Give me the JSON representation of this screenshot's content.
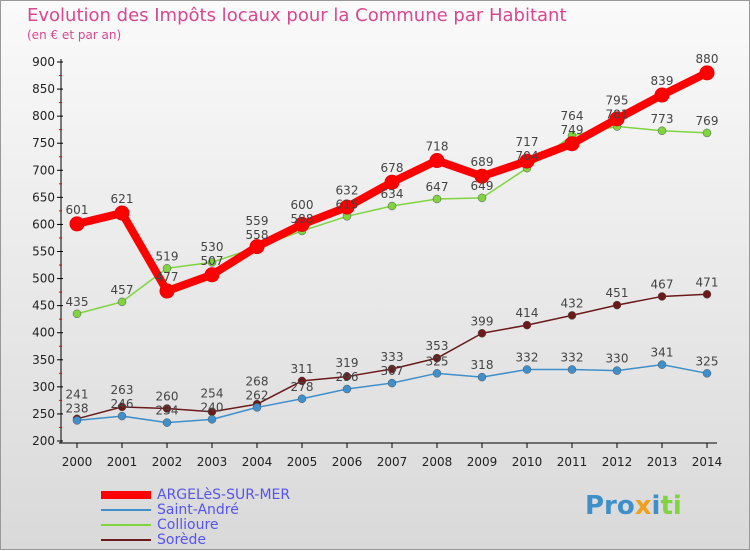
{
  "title": "Evolution des Impôts locaux pour la Commune par Habitant",
  "subtitle": "(en € et par an)",
  "logo": "Proxiti",
  "chart_data": {
    "type": "line",
    "title": "Evolution des Impôts locaux pour la Commune par Habitant",
    "ylabel": "(en € et par an)",
    "x": [
      2000,
      2001,
      2002,
      2003,
      2004,
      2005,
      2006,
      2007,
      2008,
      2009,
      2010,
      2011,
      2012,
      2013,
      2014
    ],
    "ylim": [
      200,
      900
    ],
    "yticks": [
      200,
      250,
      300,
      350,
      400,
      450,
      500,
      550,
      600,
      650,
      700,
      750,
      800,
      850,
      900
    ],
    "legend_position": "bottom-left",
    "series": [
      {
        "name": "ARGELèS-SUR-MER",
        "color": "#ff0000",
        "values": [
          601,
          621,
          477,
          507,
          559,
          600,
          632,
          678,
          718,
          689,
          717,
          749,
          795,
          839,
          880
        ]
      },
      {
        "name": "Saint-André",
        "color": "#3f8fca",
        "values": [
          238,
          246,
          234,
          240,
          262,
          278,
          296,
          307,
          325,
          318,
          332,
          332,
          330,
          341,
          325
        ]
      },
      {
        "name": "Collioure",
        "color": "#7fd43f",
        "values": [
          435,
          457,
          519,
          530,
          558,
          588,
          615,
          634,
          647,
          649,
          704,
          764,
          781,
          773,
          769
        ]
      },
      {
        "name": "Sorède",
        "color": "#6b1a1a",
        "values": [
          241,
          263,
          260,
          254,
          268,
          311,
          319,
          333,
          353,
          399,
          414,
          432,
          451,
          467,
          471
        ]
      }
    ]
  }
}
